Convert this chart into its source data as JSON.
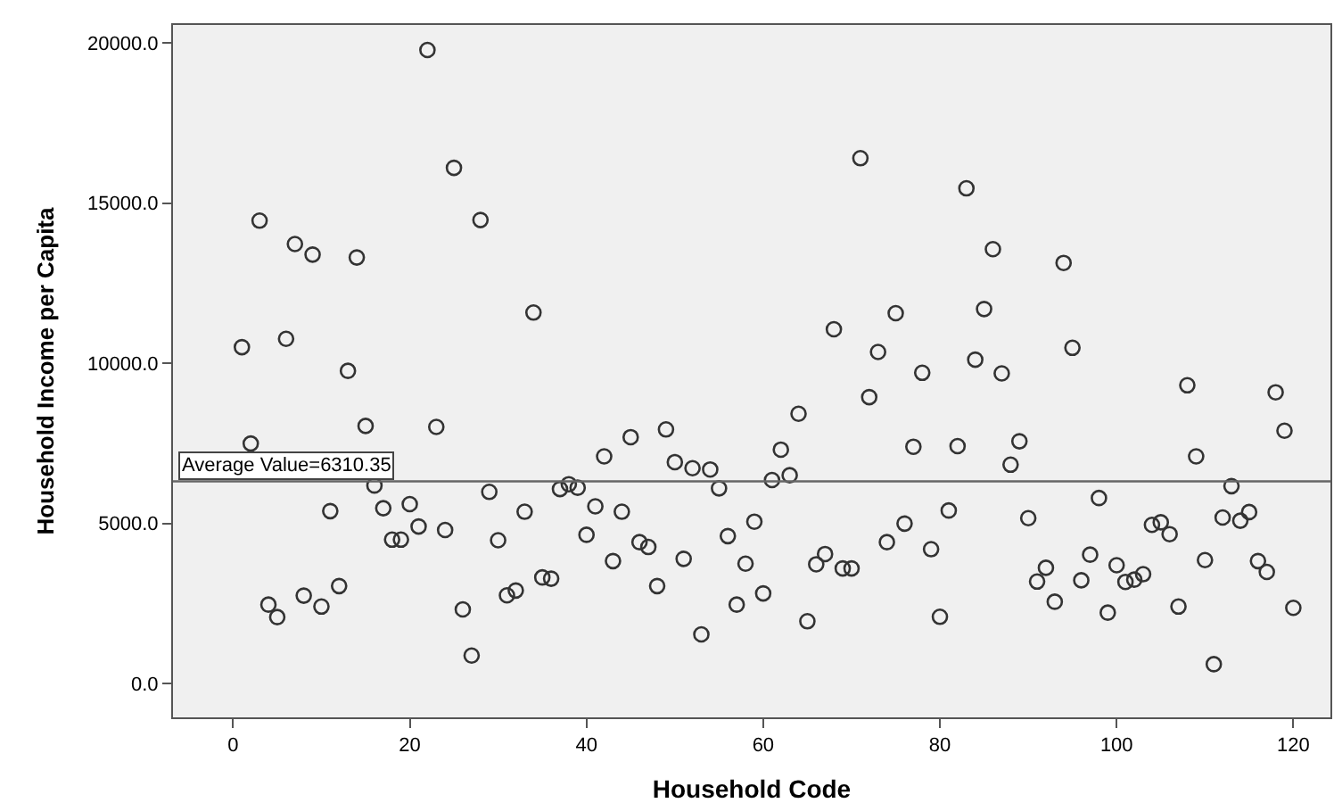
{
  "chart_data": {
    "type": "scatter",
    "xlabel": "Household Code",
    "ylabel": "Household Income per Capita",
    "x": [
      1,
      2,
      3,
      4,
      5,
      6,
      7,
      8,
      9,
      10,
      11,
      12,
      13,
      14,
      15,
      16,
      17,
      18,
      19,
      20,
      21,
      22,
      23,
      24,
      25,
      26,
      27,
      28,
      29,
      30,
      31,
      32,
      33,
      34,
      35,
      36,
      37,
      38,
      39,
      40,
      41,
      42,
      43,
      44,
      45,
      46,
      47,
      48,
      49,
      50,
      51,
      52,
      53,
      54,
      55,
      56,
      57,
      58,
      59,
      60,
      61,
      62,
      63,
      64,
      65,
      66,
      67,
      68,
      69,
      70,
      71,
      72,
      73,
      74,
      75,
      76,
      77,
      78,
      79,
      80,
      81,
      82,
      83,
      84,
      85,
      86,
      87,
      88,
      89,
      90,
      91,
      92,
      93,
      94,
      95,
      96,
      97,
      98,
      99,
      100,
      101,
      102,
      103,
      104,
      105,
      106,
      107,
      108,
      109,
      110,
      111,
      112,
      113,
      114,
      115,
      116,
      117,
      118,
      119,
      120
    ],
    "series": [
      {
        "color": "#333333",
        "values": [
          10500,
          7490,
          14450,
          2460,
          2070,
          10760,
          13720,
          2740,
          13390,
          2400,
          5380,
          3040,
          9760,
          13300,
          8040,
          6180,
          5470,
          4490,
          4490,
          5600,
          4900,
          19780,
          8010,
          4790,
          16100,
          2310,
          870,
          14470,
          5980,
          4470,
          2750,
          2900,
          5360,
          11580,
          3310,
          3270,
          6070,
          6220,
          6110,
          4640,
          5530,
          7090,
          3820,
          5360,
          7690,
          4410,
          4260,
          3040,
          7930,
          6910,
          3890,
          6720,
          1530,
          6680,
          6090,
          4600,
          2460,
          3740,
          5050,
          2810,
          6350,
          7300,
          6500,
          8420,
          1940,
          3720,
          4040,
          11060,
          3590,
          3590,
          16400,
          8940,
          10350,
          4410,
          11560,
          4990,
          7390,
          9700,
          4190,
          2080,
          5400,
          7410,
          15460,
          10110,
          11690,
          13560,
          9680,
          6830,
          7560,
          5160,
          3180,
          3610,
          2550,
          13130,
          10480,
          3220,
          4020,
          5790,
          2210,
          3690,
          3170,
          3240,
          3410,
          4950,
          5030,
          4660,
          2400,
          9310,
          7090,
          3850,
          600,
          5180,
          6160,
          5080,
          5350,
          3820,
          3480,
          9090,
          7890,
          2360
        ]
      }
    ],
    "marker": "circle",
    "xlim": [
      -6.8,
      124.2
    ],
    "ylim": [
      -1060,
      20560
    ],
    "xticks": [
      0,
      20,
      40,
      60,
      80,
      100,
      120
    ],
    "yticks": [
      {
        "value": 0,
        "label": "0.0"
      },
      {
        "value": 5000,
        "label": "5000.0"
      },
      {
        "value": 10000,
        "label": "10000.0"
      },
      {
        "value": 15000,
        "label": "15000.0"
      },
      {
        "value": 20000,
        "label": "20000.0"
      }
    ],
    "ref_lines": [
      {
        "axis": "y",
        "value": 6310.35,
        "label": "Average Value=6310.35",
        "color": "#666666"
      }
    ],
    "grid": false
  }
}
